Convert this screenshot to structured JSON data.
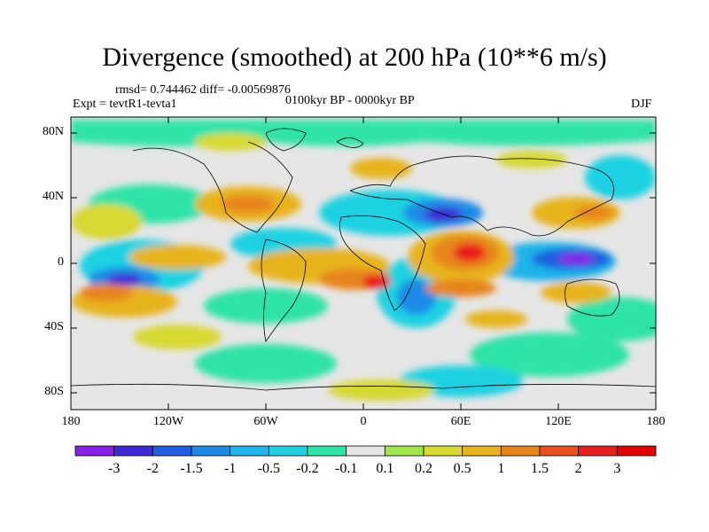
{
  "header": {
    "title": "Divergence (smoothed) at 200 hPa (10**6 m/s)",
    "stats": "rmsd= 0.744462  diff= -0.00569876",
    "experiment": "Expt = tevtR1-tevta1",
    "period": "0100kyr BP - 0000kyr BP",
    "season": "DJF"
  },
  "axes": {
    "y_ticks": [
      "80N",
      "40N",
      "0",
      "40S",
      "80S"
    ],
    "x_ticks": [
      "180",
      "120W",
      "60W",
      "0",
      "60E",
      "120E",
      "180"
    ]
  },
  "colorbar": {
    "labels": [
      "-3",
      "-2",
      "-1.5",
      "-1",
      "-0.5",
      "-0.2",
      "-0.1",
      "0.1",
      "0.2",
      "0.5",
      "1",
      "1.5",
      "2",
      "3"
    ],
    "colors": [
      "#8a1fe8",
      "#3d2ad6",
      "#1f5ee0",
      "#1f8ae6",
      "#1fb4ea",
      "#1fd2e2",
      "#2ee3a8",
      "#e6e6e6",
      "#9ee64a",
      "#d8d832",
      "#e8b41e",
      "#e8841e",
      "#e8501e",
      "#e81e1e",
      "#e00000"
    ]
  }
}
